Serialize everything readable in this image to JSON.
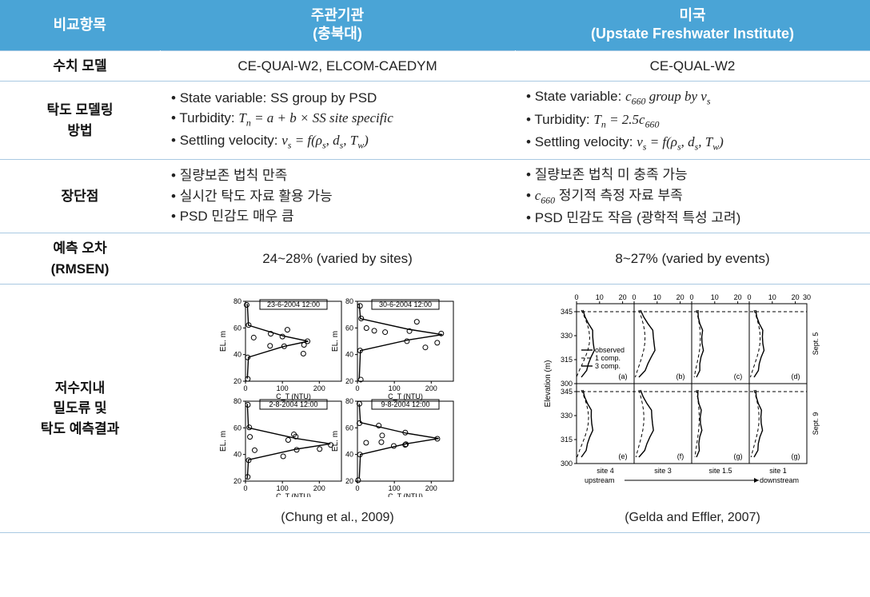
{
  "header": {
    "col1": "비교항목",
    "col2_line1": "주관기관",
    "col2_line2": "(충북대)",
    "col3_line1": "미국",
    "col3_line2": "(Upstate Freshwater Institute)"
  },
  "rows": {
    "model": {
      "label": "수치 모델",
      "left": "CE-QUAl-W2, ELCOM-CAEDYM",
      "right": "CE-QUAL-W2"
    },
    "method": {
      "label_line1": "탁도 모델링",
      "label_line2": "방법",
      "left": {
        "b1_pre": "State variable: SS group by PSD",
        "b2_pre": "Turbidity: ",
        "b2_formula": "Tₙ = a + b × SS site specific",
        "b3_pre": "Settling velocity: ",
        "b3_formula": "vₛ = f(ρₛ, dₛ, T_w)"
      },
      "right": {
        "b1_pre": "State variable: ",
        "b1_formula": "c₆₆₀ group by vₛ",
        "b2_pre": "Turbidity: ",
        "b2_formula": "Tₙ = 2.5c₆₆₀",
        "b3_pre": "Settling velocity: ",
        "b3_formula": "vₛ = f(ρₛ, dₛ, T_w)"
      }
    },
    "proscons": {
      "label": "장단점",
      "left": {
        "b1": "질량보존 법칙 만족",
        "b2": "실시간 탁도 자료 활용 가능",
        "b3": "PSD 민감도 매우 큼"
      },
      "right": {
        "b1": "질량보존 법칙 미 충족 가능",
        "b2_pre": "c₆₆₀",
        "b2_post": " 정기적 측정 자료 부족",
        "b3": "PSD 민감도 작음 (광학적 특성 고려)"
      }
    },
    "error": {
      "label_line1": "예측 오차",
      "label_line2": "(RMSEN)",
      "left": "24~28% (varied by sites)",
      "right": "8~27% (varied by events)"
    },
    "results": {
      "label_line1": "저수지내",
      "label_line2": "밀도류 및",
      "label_line3": "탁도 예측결과",
      "left_caption": "(Chung et al., 2009)",
      "right_caption": "(Gelda and Effler, 2007)"
    }
  },
  "chung_chart": {
    "type": "panel_profiles",
    "panels": [
      {
        "title": "23-6-2004 12:00",
        "peak_y": 50,
        "peak_x": 170
      },
      {
        "title": "30-6-2004 12:00",
        "peak_y": 55,
        "peak_x": 230
      },
      {
        "title": "2-8-2004 12:00",
        "peak_y": 48,
        "peak_x": 230
      },
      {
        "title": "9-8-2004 12:00",
        "peak_y": 52,
        "peak_x": 220
      }
    ],
    "x_label": "C_T (NTU)",
    "y_label": "EL. m",
    "x_ticks": [
      0,
      100,
      200
    ],
    "y_ticks": [
      20,
      40,
      60,
      80
    ],
    "y_range": [
      20,
      80
    ],
    "x_range": [
      0,
      260
    ],
    "marker_color": "#000000",
    "line_color": "#000000",
    "background_color": "#ffffff"
  },
  "gelda_chart": {
    "type": "grid_profiles",
    "rows": 2,
    "cols": 4,
    "x_ticks": [
      0,
      10,
      20
    ],
    "last_col_extra_tick": 30,
    "y_ticks": [
      300,
      315,
      330,
      345
    ],
    "y_label": "Elevation (m)",
    "row_labels_right": [
      "Sept. 5",
      "Sept. 9"
    ],
    "col_labels_bottom": [
      "site 4",
      "site 3",
      "site 1.5",
      "site 1"
    ],
    "bottom_extra_left": "upstream",
    "bottom_extra_right": "downstream",
    "panel_tags": [
      "(a)",
      "(b)",
      "(c)",
      "(d)",
      "(e)",
      "(f)",
      "(g)",
      "(g)"
    ],
    "legend": [
      "observed",
      "1 comp.",
      "3 comp."
    ],
    "dashline_y": 345,
    "line_color": "#000000",
    "background_color": "#ffffff"
  },
  "colors": {
    "header_bg": "#4aa4d6",
    "header_text": "#ffffff",
    "border": "#a9c9e2",
    "text": "#222222"
  }
}
